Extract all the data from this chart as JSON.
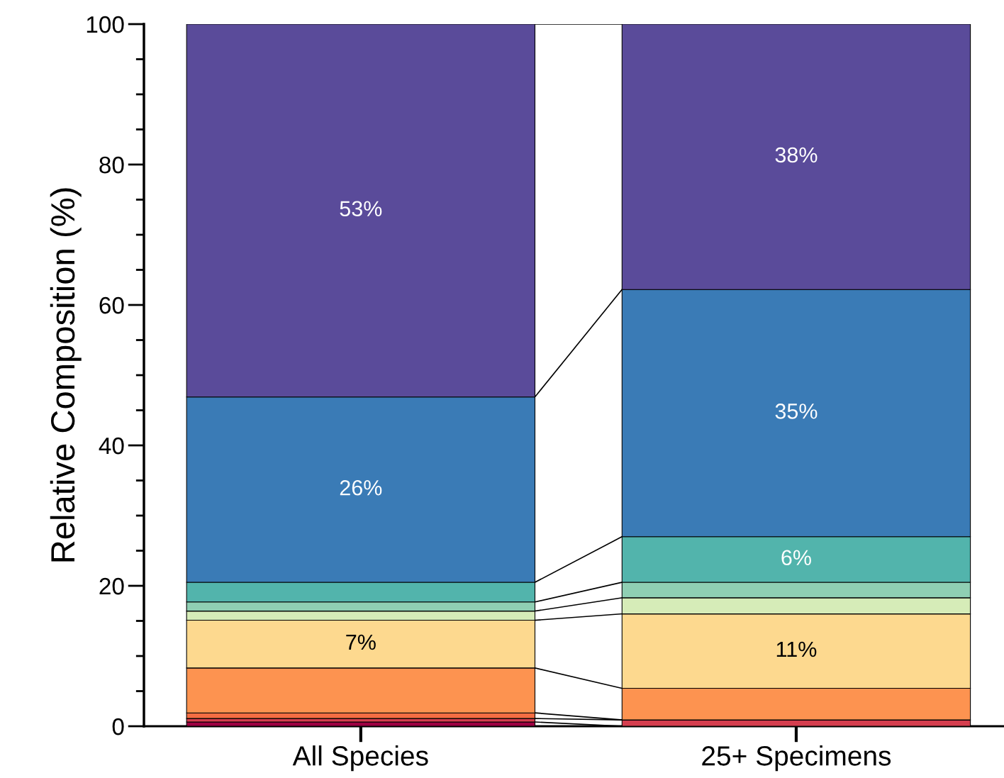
{
  "chart_data": {
    "type": "bar",
    "stacked": true,
    "ylabel": "Relative Composition (%)",
    "categories": [
      "All Species",
      "25+ Specimens"
    ],
    "ylim": [
      0,
      100
    ],
    "yticks": [
      0,
      20,
      40,
      60,
      80,
      100
    ],
    "grid": false,
    "legend": false,
    "series": [
      {
        "color": "#9e0142",
        "values": [
          0.6,
          0
        ]
      },
      {
        "color": "#d53e4f",
        "values": [
          0.5,
          0.9
        ]
      },
      {
        "color": "#f46d43",
        "values": [
          0.8,
          0
        ]
      },
      {
        "color": "#fd9350",
        "values": [
          6.4,
          4.5
        ]
      },
      {
        "color": "#fdd98f",
        "values": [
          6.8,
          10.6
        ],
        "value_labels": [
          "7%",
          "11%"
        ]
      },
      {
        "color": "#d6ecb8",
        "values": [
          1.3,
          2.3
        ]
      },
      {
        "color": "#8fcfb3",
        "values": [
          1.3,
          2.2
        ]
      },
      {
        "color": "#52b4ac",
        "values": [
          2.8,
          6.5
        ],
        "value_labels": [
          null,
          "6%"
        ]
      },
      {
        "color": "#3a7bb6",
        "values": [
          26.4,
          35.2
        ],
        "value_labels": [
          "26%",
          "35%"
        ]
      },
      {
        "color": "#5a4b9a",
        "values": [
          53.1,
          37.8
        ],
        "value_labels": [
          "53%",
          "38%"
        ]
      }
    ]
  }
}
